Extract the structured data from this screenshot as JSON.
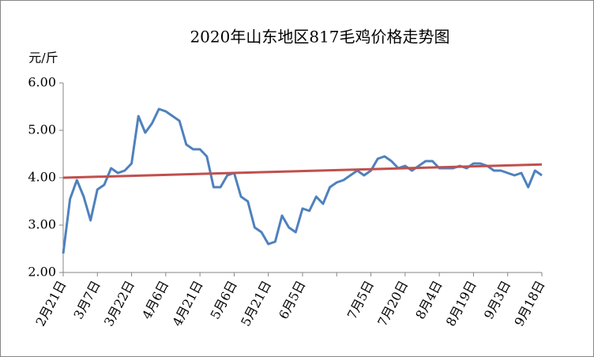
{
  "chart_data": {
    "type": "line",
    "title": "2020年山东地区817毛鸡价格走势图",
    "y_unit": "元/斤",
    "categories": [
      "2月21日",
      null,
      null,
      null,
      null,
      "3月7日",
      null,
      null,
      null,
      null,
      "3月22日",
      null,
      null,
      null,
      null,
      "4月6日",
      null,
      null,
      null,
      null,
      "4月21日",
      null,
      null,
      null,
      null,
      "5月6日",
      null,
      null,
      null,
      null,
      "5月21日",
      null,
      null,
      null,
      null,
      "6月5日",
      null,
      null,
      null,
      null,
      null,
      null,
      null,
      null,
      null,
      "7月5日",
      null,
      null,
      null,
      null,
      "7月20日",
      null,
      null,
      null,
      null,
      "8月4日",
      null,
      null,
      null,
      null,
      "8月19日",
      null,
      null,
      null,
      null,
      "9月3日",
      null,
      null,
      null,
      null,
      "9月18日"
    ],
    "series": [
      {
        "color": "#4f81bd",
        "values": [
          2.4,
          3.55,
          3.95,
          3.6,
          3.1,
          3.75,
          3.85,
          4.2,
          4.1,
          4.15,
          4.3,
          5.3,
          4.95,
          5.15,
          5.45,
          5.4,
          5.3,
          5.2,
          4.7,
          4.6,
          4.6,
          4.45,
          3.8,
          3.8,
          4.05,
          4.1,
          3.6,
          3.5,
          2.95,
          2.85,
          2.6,
          2.65,
          3.2,
          2.95,
          2.85,
          3.35,
          3.3,
          3.6,
          3.45,
          3.8,
          3.9,
          3.95,
          4.05,
          4.15,
          4.05,
          4.15,
          4.4,
          4.45,
          4.35,
          4.2,
          4.25,
          4.15,
          4.25,
          4.35,
          4.35,
          4.2,
          4.2,
          4.2,
          4.25,
          4.2,
          4.3,
          4.3,
          4.25,
          4.15,
          4.15,
          4.1,
          4.05,
          4.1,
          3.8,
          4.15,
          4.05
        ]
      }
    ],
    "trend": {
      "color": "#c0504d",
      "values": [
        4.0,
        4.28
      ]
    },
    "ylim": [
      2,
      6
    ],
    "yticks": [
      {
        "value": 2,
        "label": "2.00"
      },
      {
        "value": 3,
        "label": "3.00"
      },
      {
        "value": 4,
        "label": "4.00"
      },
      {
        "value": 5,
        "label": "5.00"
      },
      {
        "value": 6,
        "label": "6.00"
      }
    ]
  }
}
